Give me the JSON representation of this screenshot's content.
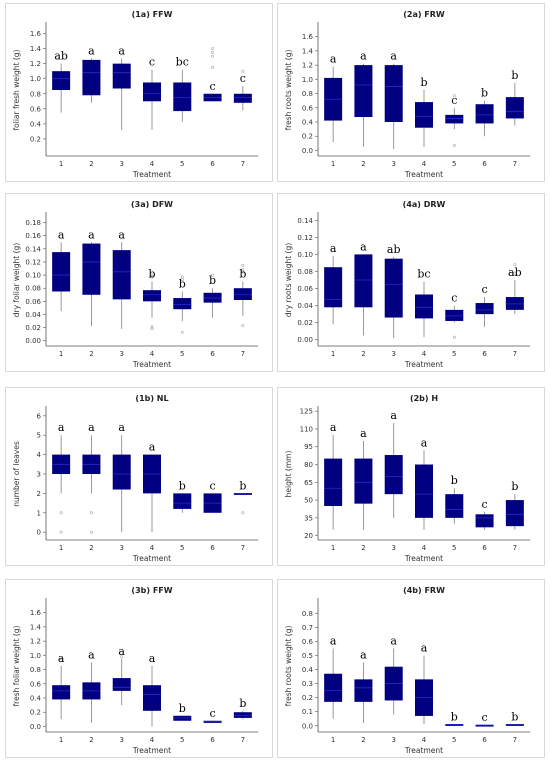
{
  "colors": {
    "box_fill": "#000080",
    "whisker": "#7f7f7f",
    "median": "#2a2ac8"
  },
  "chart_data": [
    {
      "id": "p1a",
      "type": "box",
      "title": "(1a) FFW",
      "xlabel": "Treatment",
      "ylabel": "foliar fresh weight (g)",
      "categories": [
        "1",
        "2",
        "3",
        "4",
        "5",
        "6",
        "7"
      ],
      "ylim": [
        0,
        1.7
      ],
      "yticks": [
        "0.2",
        "0.4",
        "0.6",
        "0.8",
        "1.0",
        "1.2",
        "1.4",
        "1.6"
      ],
      "boxes": [
        {
          "min": 0.55,
          "q1": 0.85,
          "med": 1.0,
          "q3": 1.1,
          "max": 1.2
        },
        {
          "min": 0.68,
          "q1": 0.78,
          "med": 1.08,
          "q3": 1.25,
          "max": 1.27
        },
        {
          "min": 0.32,
          "q1": 0.87,
          "med": 1.08,
          "q3": 1.2,
          "max": 1.27
        },
        {
          "min": 0.32,
          "q1": 0.7,
          "med": 0.8,
          "q3": 0.95,
          "max": 1.12
        },
        {
          "min": 0.43,
          "q1": 0.57,
          "med": 0.75,
          "q3": 0.95,
          "max": 1.12
        },
        {
          "min": 0.7,
          "q1": 0.7,
          "med": 0.75,
          "q3": 0.8,
          "max": 0.8
        },
        {
          "min": 0.58,
          "q1": 0.68,
          "med": 0.75,
          "q3": 0.8,
          "max": 0.9
        }
      ],
      "letters": [
        "ab",
        "a",
        "a",
        "c",
        "bc",
        "c",
        "c"
      ],
      "outliers": [
        [],
        [],
        [],
        [],
        [],
        [
          1.15,
          1.3,
          1.35,
          1.4
        ],
        [
          1.1
        ]
      ]
    },
    {
      "id": "p2a",
      "type": "box",
      "title": "(2a) FRW",
      "xlabel": "Treatment",
      "ylabel": "fresh roots weight (g)",
      "categories": [
        "1",
        "2",
        "3",
        "4",
        "5",
        "6",
        "7"
      ],
      "ylim": [
        -0.05,
        1.75
      ],
      "yticks": [
        "0.0",
        "0.2",
        "0.4",
        "0.6",
        "0.8",
        "1.0",
        "1.2",
        "1.4",
        "1.6"
      ],
      "boxes": [
        {
          "min": 0.12,
          "q1": 0.42,
          "med": 0.72,
          "q3": 1.02,
          "max": 1.18
        },
        {
          "min": 0.05,
          "q1": 0.47,
          "med": 0.92,
          "q3": 1.2,
          "max": 1.22
        },
        {
          "min": 0.02,
          "q1": 0.4,
          "med": 0.9,
          "q3": 1.2,
          "max": 1.22
        },
        {
          "min": 0.05,
          "q1": 0.32,
          "med": 0.48,
          "q3": 0.68,
          "max": 0.85
        },
        {
          "min": 0.3,
          "q1": 0.38,
          "med": 0.45,
          "q3": 0.5,
          "max": 0.6
        },
        {
          "min": 0.2,
          "q1": 0.38,
          "med": 0.5,
          "q3": 0.65,
          "max": 0.7
        },
        {
          "min": 0.35,
          "q1": 0.45,
          "med": 0.55,
          "q3": 0.75,
          "max": 0.95
        }
      ],
      "letters": [
        "a",
        "a",
        "a",
        "b",
        "c",
        "b",
        "b"
      ],
      "outliers": [
        [],
        [],
        [],
        [],
        [
          0.07,
          0.77
        ],
        [],
        []
      ]
    },
    {
      "id": "p3a",
      "type": "box",
      "title": "(3a) DFW",
      "xlabel": "Treatment",
      "ylabel": "dry foliar weight (g)",
      "categories": [
        "1",
        "2",
        "3",
        "4",
        "5",
        "6",
        "7"
      ],
      "ylim": [
        -0.005,
        0.19
      ],
      "yticks": [
        "0.00",
        "0.02",
        "0.04",
        "0.06",
        "0.08",
        "0.10",
        "0.12",
        "0.14",
        "0.16",
        "0.18"
      ],
      "boxes": [
        {
          "min": 0.045,
          "q1": 0.075,
          "med": 0.1,
          "q3": 0.135,
          "max": 0.15
        },
        {
          "min": 0.022,
          "q1": 0.07,
          "med": 0.12,
          "q3": 0.148,
          "max": 0.15
        },
        {
          "min": 0.018,
          "q1": 0.063,
          "med": 0.105,
          "q3": 0.138,
          "max": 0.15
        },
        {
          "min": 0.035,
          "q1": 0.06,
          "med": 0.07,
          "q3": 0.077,
          "max": 0.09
        },
        {
          "min": 0.03,
          "q1": 0.048,
          "med": 0.055,
          "q3": 0.065,
          "max": 0.075
        },
        {
          "min": 0.035,
          "q1": 0.058,
          "med": 0.065,
          "q3": 0.073,
          "max": 0.08
        },
        {
          "min": 0.038,
          "q1": 0.062,
          "med": 0.07,
          "q3": 0.08,
          "max": 0.09
        }
      ],
      "letters": [
        "a",
        "a",
        "a",
        "b",
        "b",
        "b",
        "b"
      ],
      "outliers": [
        [],
        [],
        [],
        [
          0.018,
          0.021,
          0.097,
          0.1
        ],
        [
          0.013,
          0.093,
          0.097
        ],
        [
          0.1
        ],
        [
          0.023,
          0.105,
          0.108,
          0.115
        ]
      ]
    },
    {
      "id": "p4a",
      "type": "box",
      "title": "(4a) DRW",
      "xlabel": "Treatment",
      "ylabel": "dry roots weight (g)",
      "categories": [
        "1",
        "2",
        "3",
        "4",
        "5",
        "6",
        "7"
      ],
      "ylim": [
        -0.005,
        0.145
      ],
      "yticks": [
        "0.00",
        "0.02",
        "0.04",
        "0.06",
        "0.08",
        "0.10",
        "0.12",
        "0.14"
      ],
      "boxes": [
        {
          "min": 0.018,
          "q1": 0.038,
          "med": 0.047,
          "q3": 0.085,
          "max": 0.098
        },
        {
          "min": 0.005,
          "q1": 0.038,
          "med": 0.07,
          "q3": 0.1,
          "max": 0.1
        },
        {
          "min": 0.002,
          "q1": 0.026,
          "med": 0.065,
          "q3": 0.095,
          "max": 0.097
        },
        {
          "min": 0.003,
          "q1": 0.025,
          "med": 0.038,
          "q3": 0.053,
          "max": 0.068
        },
        {
          "min": 0.02,
          "q1": 0.022,
          "med": 0.028,
          "q3": 0.035,
          "max": 0.04
        },
        {
          "min": 0.015,
          "q1": 0.03,
          "med": 0.035,
          "q3": 0.043,
          "max": 0.05
        },
        {
          "min": 0.03,
          "q1": 0.035,
          "med": 0.042,
          "q3": 0.05,
          "max": 0.07
        }
      ],
      "letters": [
        "a",
        "a",
        "ab",
        "bc",
        "c",
        "c",
        "ab"
      ],
      "outliers": [
        [],
        [],
        [],
        [],
        [
          0.003
        ],
        [],
        [
          0.078,
          0.088
        ]
      ]
    },
    {
      "id": "p1b",
      "type": "box",
      "title": "(1b) NL",
      "xlabel": "Treatment",
      "ylabel": "number of leaves",
      "categories": [
        "1",
        "2",
        "3",
        "4",
        "5",
        "6",
        "7"
      ],
      "ylim": [
        -0.3,
        6.3
      ],
      "yticks": [
        "0",
        "1",
        "2",
        "3",
        "4",
        "5",
        "6"
      ],
      "boxes": [
        {
          "min": 2,
          "q1": 3,
          "med": 3.5,
          "q3": 4,
          "max": 5
        },
        {
          "min": 2,
          "q1": 3,
          "med": 3.5,
          "q3": 4,
          "max": 5
        },
        {
          "min": 0,
          "q1": 2.2,
          "med": 3,
          "q3": 4,
          "max": 5
        },
        {
          "min": 0,
          "q1": 2,
          "med": 3,
          "q3": 4,
          "max": 4
        },
        {
          "min": 1,
          "q1": 1.2,
          "med": 1.5,
          "q3": 2,
          "max": 2
        },
        {
          "min": 1,
          "q1": 1,
          "med": 1.5,
          "q3": 2,
          "max": 2
        },
        {
          "min": 2,
          "q1": 2,
          "med": 2,
          "q3": 2,
          "max": 2
        }
      ],
      "letters": [
        "a",
        "a",
        "a",
        "a",
        "b",
        "c",
        "b"
      ],
      "outliers": [
        [
          0,
          1
        ],
        [
          0,
          1
        ],
        [],
        [],
        [],
        [],
        [
          1
        ]
      ]
    },
    {
      "id": "p2b",
      "type": "box",
      "title": "(2b) H",
      "xlabel": "Treatment",
      "ylabel": "height (mm)",
      "categories": [
        "1",
        "2",
        "3",
        "4",
        "5",
        "6",
        "7"
      ],
      "ylim": [
        18,
        126
      ],
      "yticks": [
        "20",
        "35",
        "50",
        "65",
        "80",
        "95",
        "110",
        "125"
      ],
      "boxes": [
        {
          "min": 25,
          "q1": 45,
          "med": 60,
          "q3": 85,
          "max": 105
        },
        {
          "min": 25,
          "q1": 47,
          "med": 65,
          "q3": 85,
          "max": 100
        },
        {
          "min": 35,
          "q1": 55,
          "med": 70,
          "q3": 88,
          "max": 115
        },
        {
          "min": 25,
          "q1": 35,
          "med": 55,
          "q3": 80,
          "max": 92
        },
        {
          "min": 30,
          "q1": 35,
          "med": 42,
          "q3": 55,
          "max": 60
        },
        {
          "min": 25,
          "q1": 27,
          "med": 35,
          "q3": 38,
          "max": 40
        },
        {
          "min": 25,
          "q1": 28,
          "med": 38,
          "q3": 50,
          "max": 55
        }
      ],
      "letters": [
        "a",
        "a",
        "a",
        "a",
        "b",
        "c",
        "b"
      ],
      "outliers": [
        [],
        [],
        [],
        [],
        [],
        [],
        []
      ]
    },
    {
      "id": "p3b",
      "type": "box",
      "title": "(3b) FFW",
      "xlabel": "Treatment",
      "ylabel": "fresh foliar weight (g)",
      "categories": [
        "1",
        "2",
        "3",
        "4",
        "5",
        "6",
        "7"
      ],
      "ylim": [
        -0.05,
        1.75
      ],
      "yticks": [
        "0.0",
        "0.2",
        "0.4",
        "0.6",
        "0.8",
        "1.0",
        "1.2",
        "1.4",
        "1.6"
      ],
      "boxes": [
        {
          "min": 0.1,
          "q1": 0.38,
          "med": 0.5,
          "q3": 0.58,
          "max": 0.85
        },
        {
          "min": 0.05,
          "q1": 0.38,
          "med": 0.5,
          "q3": 0.62,
          "max": 0.9
        },
        {
          "min": 0.3,
          "q1": 0.5,
          "med": 0.55,
          "q3": 0.68,
          "max": 0.95
        },
        {
          "min": 0,
          "q1": 0.22,
          "med": 0.45,
          "q3": 0.58,
          "max": 0.85
        },
        {
          "min": 0.08,
          "q1": 0.08,
          "med": 0.12,
          "q3": 0.15,
          "max": 0.15
        },
        {
          "min": 0.05,
          "q1": 0.05,
          "med": 0.07,
          "q3": 0.08,
          "max": 0.08
        },
        {
          "min": 0.1,
          "q1": 0.12,
          "med": 0.15,
          "q3": 0.2,
          "max": 0.22
        }
      ],
      "letters": [
        "a",
        "a",
        "a",
        "a",
        "b",
        "c",
        "b"
      ],
      "outliers": [
        [
          0.95
        ],
        [],
        [
          0.98
        ],
        [],
        [],
        [],
        []
      ]
    },
    {
      "id": "p4b",
      "type": "box",
      "title": "(4b) FRW",
      "xlabel": "Treatment",
      "ylabel": "fresh roots weight (g)",
      "categories": [
        "1",
        "2",
        "3",
        "4",
        "5",
        "6",
        "7"
      ],
      "ylim": [
        -0.03,
        0.88
      ],
      "yticks": [
        "0.0",
        "0.1",
        "0.2",
        "0.3",
        "0.4",
        "0.5",
        "0.6",
        "0.7",
        "0.8"
      ],
      "boxes": [
        {
          "min": 0.05,
          "q1": 0.17,
          "med": 0.25,
          "q3": 0.37,
          "max": 0.55
        },
        {
          "min": 0.02,
          "q1": 0.17,
          "med": 0.27,
          "q3": 0.33,
          "max": 0.45
        },
        {
          "min": 0.08,
          "q1": 0.18,
          "med": 0.3,
          "q3": 0.42,
          "max": 0.55
        },
        {
          "min": 0.01,
          "q1": 0.07,
          "med": 0.2,
          "q3": 0.33,
          "max": 0.5
        },
        {
          "min": 0.01,
          "q1": 0.01,
          "med": 0.01,
          "q3": 0.01,
          "max": 0.01
        },
        {
          "min": 0.005,
          "q1": 0.005,
          "med": 0.005,
          "q3": 0.005,
          "max": 0.005
        },
        {
          "min": 0.01,
          "q1": 0.01,
          "med": 0.01,
          "q3": 0.01,
          "max": 0.01
        }
      ],
      "letters": [
        "a",
        "a",
        "a",
        "a",
        "b",
        "c",
        "b"
      ],
      "outliers": [
        [],
        [],
        [],
        [],
        [],
        [],
        []
      ]
    }
  ]
}
